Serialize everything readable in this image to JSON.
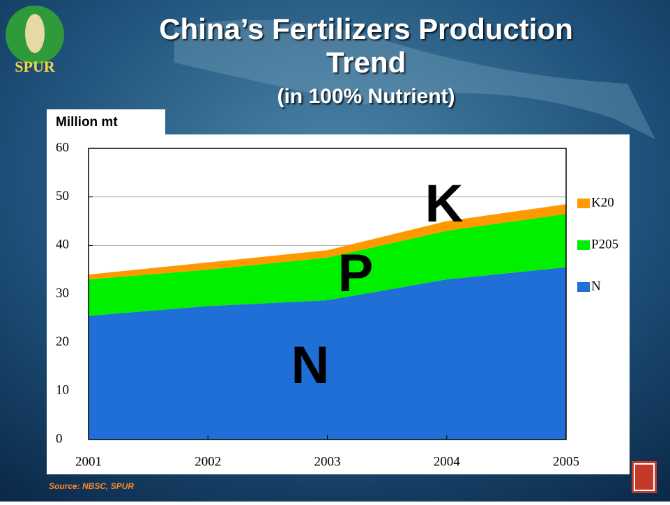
{
  "logo": "SPUR",
  "chart_data": {
    "type": "stacked-area",
    "title": "China’s Fertilizers Production Trend",
    "subtitle": "(in 100% Nutrient)",
    "y_label": "Million mt",
    "source": "Source: NBSC, SPUR",
    "annotations": [
      "N",
      "P",
      "K"
    ],
    "x": [
      2001,
      2002,
      2003,
      2004,
      2005
    ],
    "xlim": [
      2001,
      2005
    ],
    "xticks": [
      2001,
      2002,
      2003,
      2004,
      2005
    ],
    "ylim": [
      0,
      60
    ],
    "yticks": [
      0,
      10,
      20,
      30,
      40,
      50,
      60
    ],
    "grid": true,
    "legend": "right",
    "series": [
      {
        "name": "N",
        "color": "#1f6fd6",
        "values": [
          25.5,
          27.5,
          28.7,
          33,
          35.5
        ]
      },
      {
        "name": "P205",
        "color": "#00f000",
        "values": [
          7.5,
          7.5,
          8.8,
          10,
          11
        ]
      },
      {
        "name": "K20",
        "color": "#ff9900",
        "values": [
          1,
          1.5,
          1.5,
          2,
          2
        ]
      }
    ]
  }
}
